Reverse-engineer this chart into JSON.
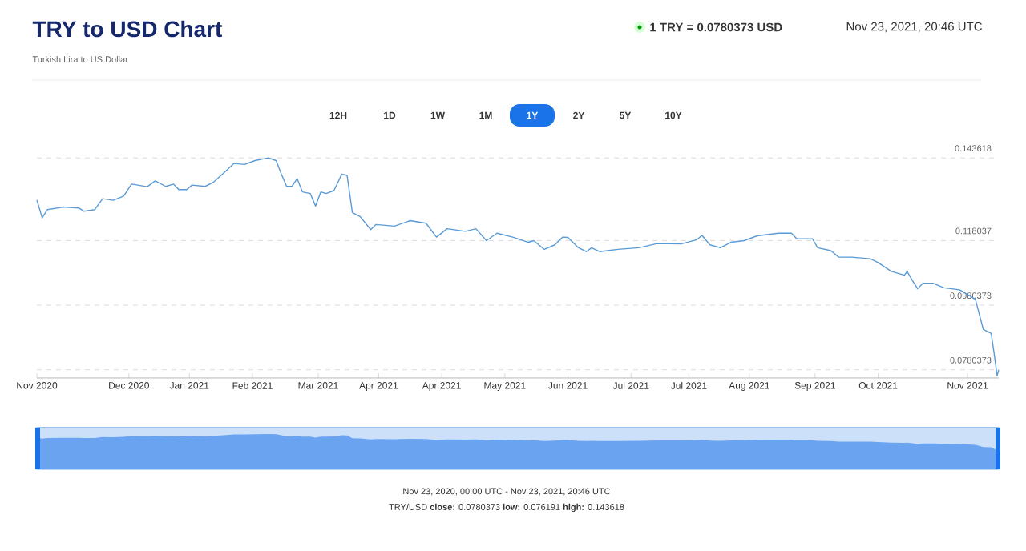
{
  "chart_data": {
    "type": "line",
    "title": "TRY to USD Chart",
    "subtitle": "Turkish Lira to US Dollar",
    "x": [
      "2020-11-23",
      "2020-11-25",
      "2020-11-27",
      "2020-12-03",
      "2020-12-09",
      "2020-12-11",
      "2020-12-15",
      "2020-12-18",
      "2020-12-22",
      "2020-12-26",
      "2020-12-29",
      "2021-01-04",
      "2021-01-07",
      "2021-01-11",
      "2021-01-14",
      "2021-01-16",
      "2021-01-19",
      "2021-01-21",
      "2021-01-26",
      "2021-01-29",
      "2021-02-02",
      "2021-02-06",
      "2021-02-10",
      "2021-02-14",
      "2021-02-19",
      "2021-02-22",
      "2021-02-24",
      "2021-02-26",
      "2021-02-28",
      "2021-03-02",
      "2021-03-04",
      "2021-03-07",
      "2021-03-09",
      "2021-03-11",
      "2021-03-13",
      "2021-03-16",
      "2021-03-19",
      "2021-03-21",
      "2021-03-23",
      "2021-03-26",
      "2021-03-30",
      "2021-04-01",
      "2021-04-08",
      "2021-04-14",
      "2021-04-20",
      "2021-04-24",
      "2021-04-28",
      "2021-05-05",
      "2021-05-09",
      "2021-05-13",
      "2021-05-17",
      "2021-05-23",
      "2021-05-29",
      "2021-05-31",
      "2021-06-04",
      "2021-06-08",
      "2021-06-11",
      "2021-06-13",
      "2021-06-17",
      "2021-06-20",
      "2021-06-22",
      "2021-06-25",
      "2021-07-02",
      "2021-07-10",
      "2021-07-17",
      "2021-07-26",
      "2021-08-01",
      "2021-08-03",
      "2021-08-06",
      "2021-08-10",
      "2021-08-14",
      "2021-08-19",
      "2021-08-24",
      "2021-09-01",
      "2021-09-06",
      "2021-09-08",
      "2021-09-14",
      "2021-09-16",
      "2021-09-21",
      "2021-09-24",
      "2021-09-29",
      "2021-10-06",
      "2021-10-09",
      "2021-10-14",
      "2021-10-19",
      "2021-10-20",
      "2021-10-22",
      "2021-10-24",
      "2021-10-26",
      "2021-10-30",
      "2021-11-03",
      "2021-11-09",
      "2021-11-11",
      "2021-11-15",
      "2021-11-18",
      "2021-11-21",
      "2021-11-22",
      "2021-11-23T06:00",
      "2021-11-23T20:46"
    ],
    "series": [
      {
        "color": "#5b9bd5",
        "values": [
          0.1306,
          0.1251,
          0.1276,
          0.1284,
          0.1281,
          0.1271,
          0.1276,
          0.131,
          0.1305,
          0.1318,
          0.1355,
          0.1347,
          0.1365,
          0.1348,
          0.1355,
          0.1338,
          0.1338,
          0.1352,
          0.1348,
          0.136,
          0.1389,
          0.1419,
          0.1416,
          0.1428,
          0.143618,
          0.1428,
          0.1386,
          0.1348,
          0.1348,
          0.1372,
          0.1331,
          0.1326,
          0.1287,
          0.1331,
          0.1326,
          0.1335,
          0.1386,
          0.1382,
          0.1267,
          0.1254,
          0.1214,
          0.123,
          0.1225,
          0.1242,
          0.1234,
          0.1191,
          0.1217,
          0.1209,
          0.1217,
          0.118,
          0.1203,
          0.1191,
          0.1175,
          0.118,
          0.1153,
          0.1167,
          0.1191,
          0.119,
          0.1158,
          0.1146,
          0.1158,
          0.1146,
          0.1153,
          0.1158,
          0.1171,
          0.117,
          0.1183,
          0.1196,
          0.1167,
          0.1158,
          0.1175,
          0.118,
          0.1195,
          0.1203,
          0.1203,
          0.1186,
          0.1186,
          0.1158,
          0.1149,
          0.1129,
          0.1129,
          0.1124,
          0.1112,
          0.1085,
          0.1073,
          0.1085,
          0.1057,
          0.1031,
          0.1048,
          0.1048,
          0.1034,
          0.1028,
          0.1018,
          0.0998,
          0.0905,
          0.0893,
          0.0837,
          0.076191,
          0.0780373
        ]
      }
    ],
    "xlim": [
      "2020-11-23",
      "2021-11-23T20:46"
    ],
    "ylim": [
      0.0755,
      0.143618
    ],
    "xticks": [
      {
        "value": "2020-11-23",
        "label": "Nov 2020"
      },
      {
        "value": "2020-12-28",
        "label": "Dec 2020"
      },
      {
        "value": "2021-01-20",
        "label": "Jan 2021"
      },
      {
        "value": "2021-02-13",
        "label": "Feb 2021"
      },
      {
        "value": "2021-03-10",
        "label": "Mar 2021"
      },
      {
        "value": "2021-04-02",
        "label": "Apr 2021"
      },
      {
        "value": "2021-04-26",
        "label": "Apr 2021"
      },
      {
        "value": "2021-05-20",
        "label": "May 2021"
      },
      {
        "value": "2021-06-13",
        "label": "Jun 2021"
      },
      {
        "value": "2021-07-07",
        "label": "Jul 2021"
      },
      {
        "value": "2021-07-29",
        "label": "Jul 2021"
      },
      {
        "value": "2021-08-21",
        "label": "Aug 2021"
      },
      {
        "value": "2021-09-15",
        "label": "Sep 2021"
      },
      {
        "value": "2021-10-09",
        "label": "Oct 2021"
      },
      {
        "value": "2021-11-12",
        "label": "Nov 2021"
      }
    ],
    "yticks": [
      0.0780373,
      0.0980373,
      0.118037,
      0.143618
    ],
    "grid": "y",
    "annotations": [
      "1 TRY = 0.0780373 USD",
      "Nov 23, 2021, 20:46 UTC",
      "12H",
      "1D",
      "1W",
      "1M",
      "1Y",
      "2Y",
      "5Y",
      "10Y",
      "Nov 23, 2020, 00:00 UTC - Nov 23, 2021, 20:46 UTC",
      "TRY/USD **close:** 0.0780373 **low:** 0.076191 **high:** 0.143618"
    ]
  }
}
